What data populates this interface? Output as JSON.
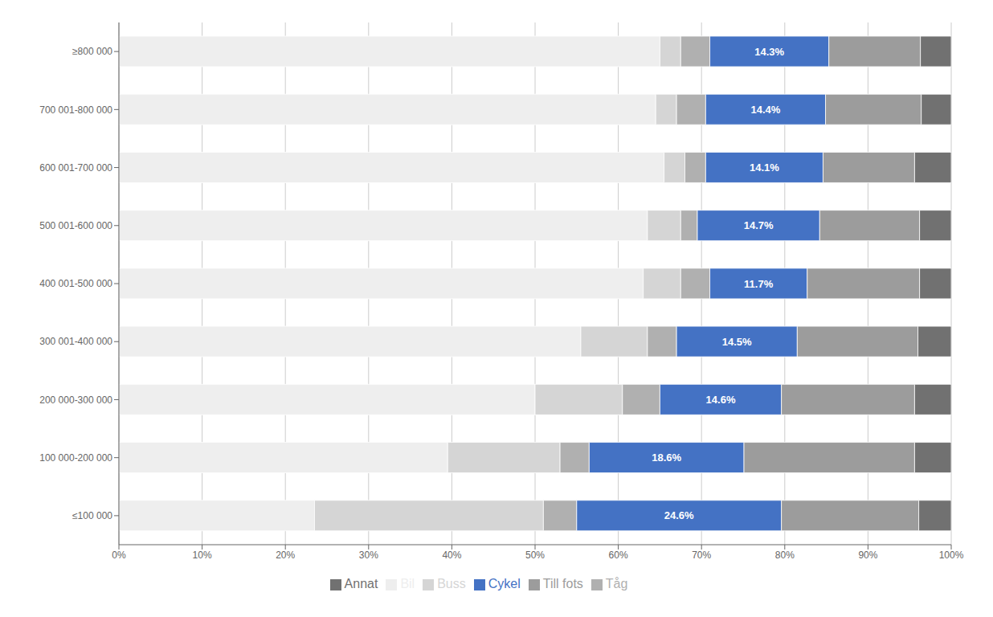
{
  "chart_data": {
    "type": "bar",
    "orientation": "horizontal",
    "stacked": true,
    "categories": [
      "≤100 000",
      "100 000-200 000",
      "200 000-300 000",
      "300 001-400 000",
      "400 001-500 000",
      "500 001-600 000",
      "600 001-700 000",
      "700 001-800 000",
      "≥800 000"
    ],
    "series": [
      {
        "name": "Bil",
        "color": "#eeeeee",
        "values": [
          23.5,
          39.5,
          50.0,
          55.5,
          63.0,
          63.5,
          65.5,
          64.5,
          65.0
        ]
      },
      {
        "name": "Buss",
        "color": "#d5d5d5",
        "values": [
          27.5,
          13.5,
          10.5,
          8.0,
          4.5,
          4.0,
          2.5,
          2.5,
          2.5
        ]
      },
      {
        "name": "Tåg",
        "color": "#b0b0b0",
        "values": [
          4.0,
          3.5,
          4.5,
          3.5,
          3.5,
          2.0,
          2.5,
          3.5,
          3.5
        ]
      },
      {
        "name": "Cykel",
        "color": "#4472c4",
        "values": [
          24.6,
          18.6,
          14.6,
          14.5,
          11.7,
          14.7,
          14.1,
          14.4,
          14.3
        ],
        "data_labels": true,
        "value_labels": [
          "24.6%",
          "18.6%",
          "14.6%",
          "14.5%",
          "11.7%",
          "14.7%",
          "14.1%",
          "14.4%",
          "14.3%"
        ]
      },
      {
        "name": "Till fots",
        "color": "#9c9c9c",
        "values": [
          16.5,
          20.5,
          16.0,
          14.5,
          13.5,
          12.0,
          11.0,
          11.5,
          11.0
        ]
      },
      {
        "name": "Annat",
        "color": "#717171",
        "values": [
          3.9,
          4.4,
          4.4,
          4.0,
          3.8,
          3.8,
          4.4,
          3.6,
          3.7
        ]
      }
    ],
    "xlim": [
      0,
      100
    ],
    "xticks": [
      {
        "value": 0,
        "label": "0%"
      },
      {
        "value": 10,
        "label": "10%"
      },
      {
        "value": 20,
        "label": "20%"
      },
      {
        "value": 30,
        "label": "30%"
      },
      {
        "value": 40,
        "label": "40%"
      },
      {
        "value": 50,
        "label": "50%"
      },
      {
        "value": 60,
        "label": "60%"
      },
      {
        "value": 70,
        "label": "70%"
      },
      {
        "value": 80,
        "label": "80%"
      },
      {
        "value": 90,
        "label": "90%"
      },
      {
        "value": 100,
        "label": "100%"
      }
    ],
    "grid": true,
    "legend": "bottom"
  }
}
